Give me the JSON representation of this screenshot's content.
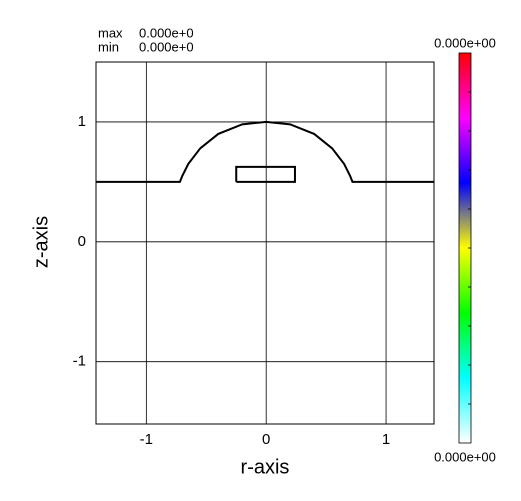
{
  "chart_data": {
    "type": "line",
    "stats": [
      {
        "label": "max",
        "value": "0.000e+0"
      },
      {
        "label": "min",
        "value": "0.000e+0"
      }
    ],
    "x_label": "r-axis",
    "y_label": "z-axis",
    "xlim": [
      -1.42,
      1.4
    ],
    "ylim": [
      -1.52,
      1.5
    ],
    "xticks": [
      -1,
      0,
      1
    ],
    "yticks": [
      -1,
      0,
      1
    ],
    "grid": true,
    "series": [
      {
        "color": "#000000",
        "x": [
          -1.42,
          -0.72,
          -0.7,
          -0.65,
          -0.55,
          -0.4,
          -0.2,
          0,
          0.2,
          0.4,
          0.55,
          0.65,
          0.7,
          0.72,
          1.4
        ],
        "values": [
          0.5,
          0.5,
          0.55,
          0.65,
          0.78,
          0.9,
          0.98,
          1.0,
          0.98,
          0.9,
          0.78,
          0.65,
          0.55,
          0.5,
          0.5
        ]
      },
      {
        "color": "#000000",
        "x": [
          -0.25,
          0.24,
          0.24,
          -0.25,
          -0.25
        ],
        "values": [
          0.5,
          0.5,
          0.625,
          0.625,
          0.5
        ]
      }
    ],
    "colorbar": {
      "colors": [
        "#ff0000",
        "#ff00ff",
        "#0000ff",
        "#ffff00",
        "#00ff00",
        "#00ffff",
        "#ffffff"
      ],
      "top_label": "0.000e+00",
      "bottom_label": "0.000e+00"
    }
  }
}
